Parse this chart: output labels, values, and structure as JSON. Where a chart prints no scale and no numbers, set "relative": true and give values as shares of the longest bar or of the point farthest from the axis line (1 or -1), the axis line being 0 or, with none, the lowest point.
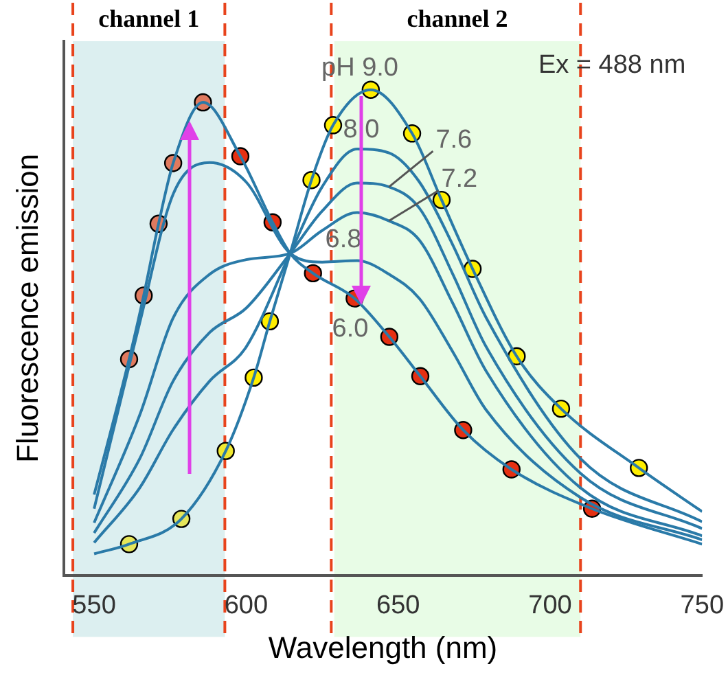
{
  "chart_data": {
    "type": "line",
    "xlabel": "Wavelength (nm)",
    "ylabel": "Fluorescence emission",
    "relative": true,
    "xlim": [
      540,
      750
    ],
    "xticks": [
      550,
      600,
      650,
      700,
      750
    ],
    "annotations": [
      "Ex = 488 nm"
    ],
    "bands": [
      {
        "axis": "x",
        "from": 543,
        "to": 593,
        "label": "channel 1",
        "color": "#dceff0"
      },
      {
        "axis": "x",
        "from": 629,
        "to": 710,
        "label": "channel 2",
        "color": "#e8fce6"
      }
    ],
    "ref_lines": [
      {
        "axis": "x",
        "value": 543,
        "color": "#e8431c",
        "line_style": "dashed"
      },
      {
        "axis": "x",
        "value": 593,
        "color": "#e8431c",
        "line_style": "dashed"
      },
      {
        "axis": "x",
        "value": 628,
        "color": "#e8431c",
        "line_style": "dashed"
      },
      {
        "axis": "x",
        "value": 710,
        "color": "#e8431c",
        "line_style": "dashed"
      }
    ],
    "series": [
      {
        "name": "pH 9.0",
        "color": "#2a7aa8",
        "x": [
          550,
          561.5,
          578.7,
          593.3,
          602.5,
          607.8,
          614.5,
          621.5,
          628.6,
          641,
          654.6,
          664.3,
          674.5,
          689,
          703.6,
          729.2,
          750
        ],
        "values": [
          0.044,
          0.064,
          0.116,
          0.256,
          0.407,
          0.523,
          0.663,
          0.814,
          0.927,
          1.0,
          0.91,
          0.773,
          0.631,
          0.451,
          0.343,
          0.221,
          0.131
        ]
      },
      {
        "name": "8.0",
        "color": "#2a7aa8",
        "x": [
          550,
          565,
          576,
          588,
          600,
          614.5,
          625,
          636.5,
          647,
          657,
          668,
          679,
          710,
          750
        ],
        "values": [
          0.067,
          0.18,
          0.3,
          0.4,
          0.47,
          0.663,
          0.8,
          0.878,
          0.87,
          0.81,
          0.68,
          0.53,
          0.24,
          0.11
        ]
      },
      {
        "name": "7.6",
        "color": "#2a7aa8",
        "x": [
          550,
          565,
          576,
          588,
          600,
          614.5,
          625,
          636.5,
          647,
          657,
          668,
          679,
          710,
          750
        ],
        "values": [
          0.087,
          0.24,
          0.4,
          0.5,
          0.55,
          0.663,
          0.75,
          0.808,
          0.8,
          0.756,
          0.62,
          0.47,
          0.21,
          0.096
        ]
      },
      {
        "name": "7.2",
        "color": "#2a7aa8",
        "x": [
          550,
          565,
          576,
          588,
          600,
          614.5,
          625,
          636.5,
          647,
          657,
          668,
          679,
          710,
          750
        ],
        "values": [
          0.108,
          0.33,
          0.53,
          0.62,
          0.65,
          0.663,
          0.71,
          0.747,
          0.73,
          0.69,
          0.56,
          0.42,
          0.18,
          0.081
        ]
      },
      {
        "name": "6.8",
        "color": "#2a7aa8",
        "x": [
          550,
          565,
          576,
          588,
          600,
          614.5,
          625,
          636.5,
          647,
          657,
          668,
          679,
          710,
          750
        ],
        "values": [
          0.137,
          0.52,
          0.785,
          0.85,
          0.81,
          0.663,
          0.645,
          0.648,
          0.62,
          0.57,
          0.46,
          0.34,
          0.16,
          0.073
        ]
      },
      {
        "name": "6.0",
        "color": "#2a7aa8",
        "x": [
          550,
          561.5,
          566.3,
          571.2,
          576,
          585.8,
          598.1,
          608.7,
          614.5,
          622,
          635.7,
          647.1,
          657.3,
          671.4,
          687.3,
          713.8,
          750
        ],
        "values": [
          0.166,
          0.445,
          0.576,
          0.724,
          0.849,
          0.974,
          0.863,
          0.727,
          0.663,
          0.622,
          0.57,
          0.491,
          0.41,
          0.299,
          0.218,
          0.137,
          0.064
        ]
      },
      {
        "type": "scatter",
        "marker": "circle",
        "x": [
          561.5,
          566.3,
          571.2,
          576,
          585.8,
          598.1,
          608.7,
          622,
          635.7,
          647.1,
          657.3,
          671.4,
          687.3,
          713.8,
          561.5,
          578.7,
          593.3,
          602.5,
          607.8,
          621.5,
          628.6,
          641,
          654.6,
          664.3,
          674.5,
          689,
          703.6,
          729.2
        ],
        "values": [
          0.445,
          0.576,
          0.724,
          0.849,
          0.974,
          0.863,
          0.727,
          0.622,
          0.57,
          0.491,
          0.41,
          0.299,
          0.218,
          0.137,
          0.064,
          0.116,
          0.256,
          0.407,
          0.523,
          0.814,
          0.927,
          1.0,
          0.91,
          0.773,
          0.631,
          0.451,
          0.343,
          0.221
        ],
        "colors": [
          "#e07a5f",
          "#e07a5f",
          "#e07a5f",
          "#e07a5f",
          "#e07a5f",
          "#e53012",
          "#e53012",
          "#e53012",
          "#e53012",
          "#e53012",
          "#e53012",
          "#e53012",
          "#e53012",
          "#e53012",
          "#e6e65a",
          "#e6e65a",
          "#f0e830",
          "#ffee00",
          "#ffee00",
          "#ffee00",
          "#ffee00",
          "#ffee00",
          "#ffee00",
          "#ffee00",
          "#ffee00",
          "#ffee00",
          "#ffee00",
          "#ffee00"
        ]
      }
    ]
  }
}
